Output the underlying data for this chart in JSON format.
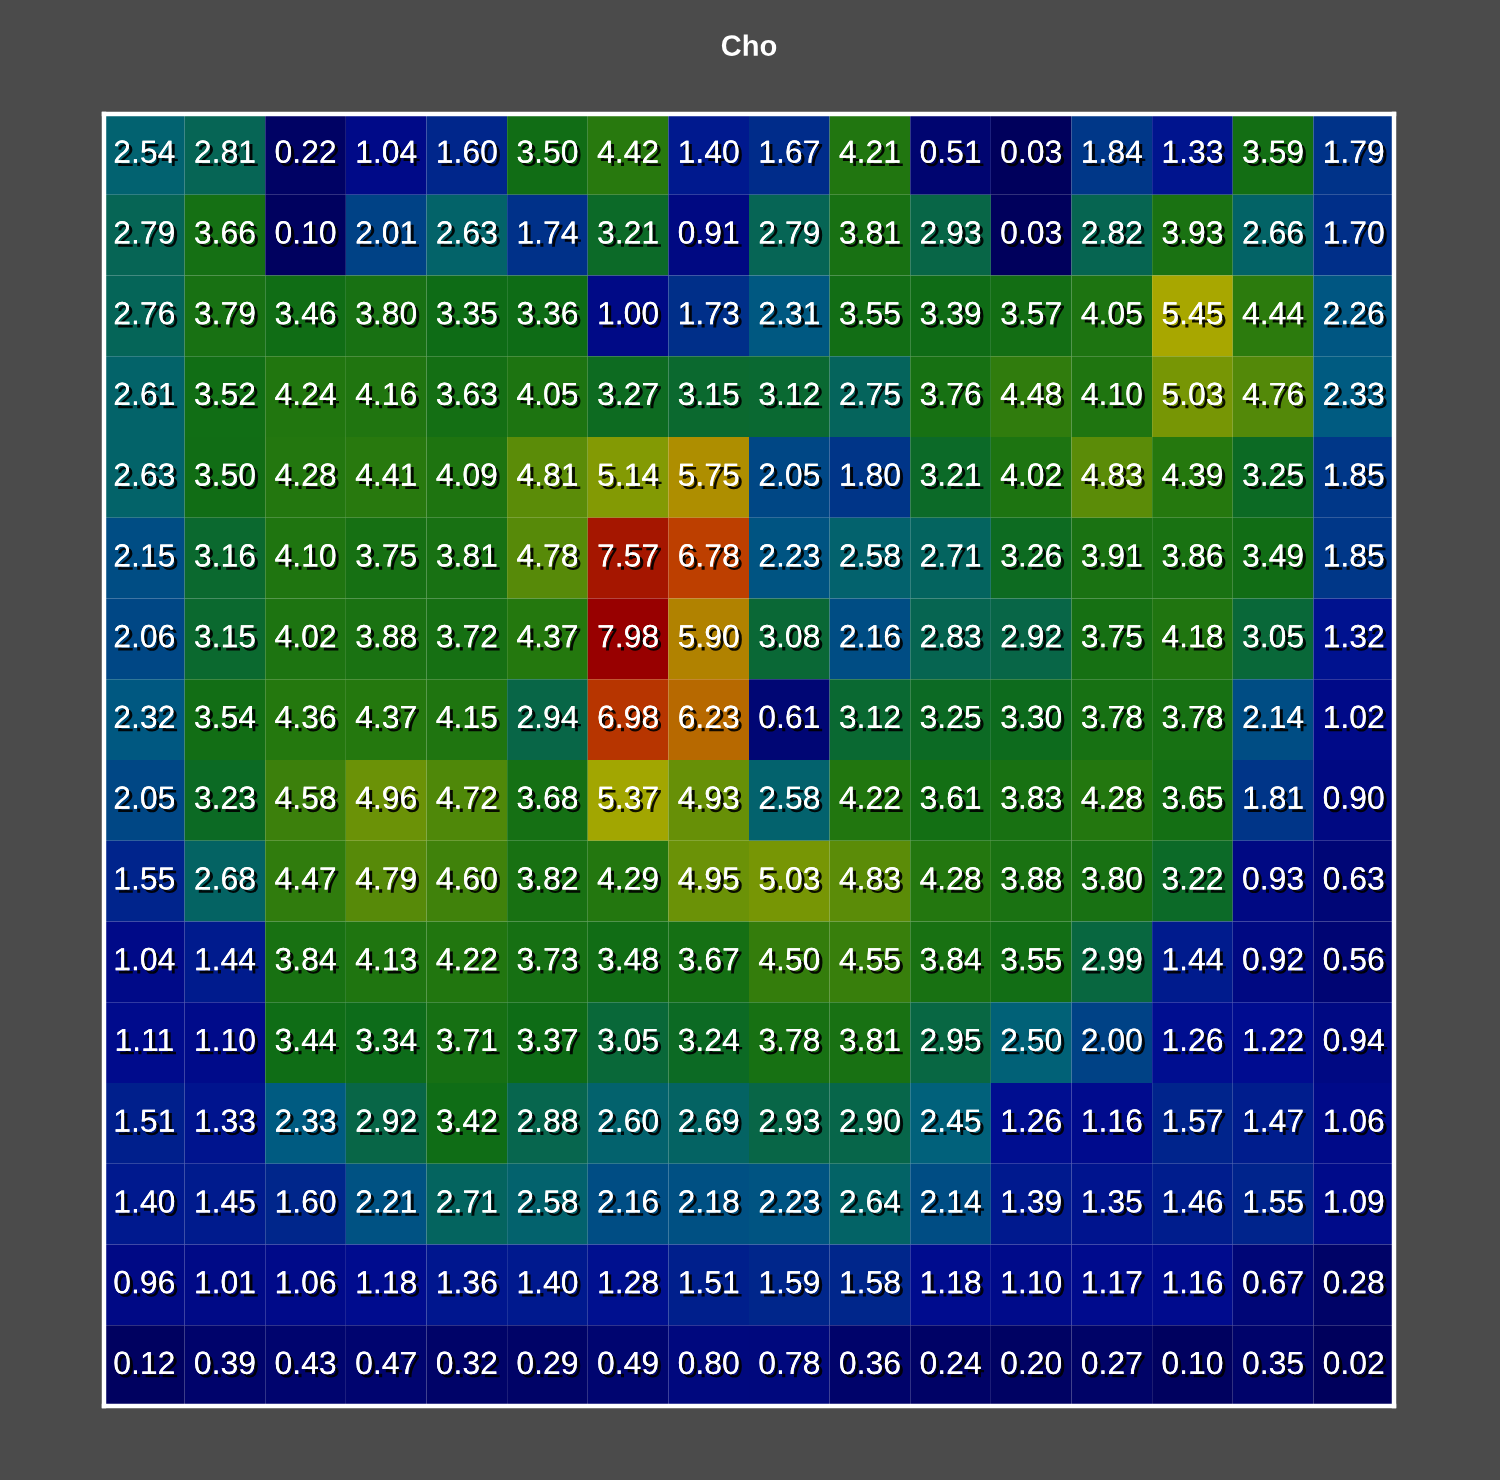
{
  "chart_data": {
    "type": "heatmap",
    "title": "Cho",
    "categories": [
      null,
      null,
      null,
      null,
      null,
      null,
      null,
      null,
      null,
      null,
      null,
      null,
      null,
      null,
      null,
      null
    ],
    "y_categories": [
      null,
      null,
      null,
      null,
      null,
      null,
      null,
      null,
      null,
      null,
      null,
      null,
      null,
      null,
      null,
      null
    ],
    "cells": [
      [
        2.54,
        2.81,
        0.22,
        1.04,
        1.6,
        3.5,
        4.42,
        1.4,
        1.67,
        4.21,
        0.51,
        0.03,
        1.84,
        1.33,
        3.59,
        1.79
      ],
      [
        2.79,
        3.66,
        0.1,
        2.01,
        2.63,
        1.74,
        3.21,
        0.91,
        2.79,
        3.81,
        2.93,
        0.03,
        2.82,
        3.93,
        2.66,
        1.7
      ],
      [
        2.76,
        3.79,
        3.46,
        3.8,
        3.35,
        3.36,
        1.0,
        1.73,
        2.31,
        3.55,
        3.39,
        3.57,
        4.05,
        5.45,
        4.44,
        2.26
      ],
      [
        2.61,
        3.52,
        4.24,
        4.16,
        3.63,
        4.05,
        3.27,
        3.15,
        3.12,
        2.75,
        3.76,
        4.48,
        4.1,
        5.03,
        4.76,
        2.33
      ],
      [
        2.63,
        3.5,
        4.28,
        4.41,
        4.09,
        4.81,
        5.14,
        5.75,
        2.05,
        1.8,
        3.21,
        4.02,
        4.83,
        4.39,
        3.25,
        1.85
      ],
      [
        2.15,
        3.16,
        4.1,
        3.75,
        3.81,
        4.78,
        7.57,
        6.78,
        2.23,
        2.58,
        2.71,
        3.26,
        3.91,
        3.86,
        3.49,
        1.85
      ],
      [
        2.06,
        3.15,
        4.02,
        3.88,
        3.72,
        4.37,
        7.98,
        5.9,
        3.08,
        2.16,
        2.83,
        2.92,
        3.75,
        4.18,
        3.05,
        1.32
      ],
      [
        2.32,
        3.54,
        4.36,
        4.37,
        4.15,
        2.94,
        6.98,
        6.23,
        0.61,
        3.12,
        3.25,
        3.3,
        3.78,
        3.78,
        2.14,
        1.02
      ],
      [
        2.05,
        3.23,
        4.58,
        4.96,
        4.72,
        3.68,
        5.37,
        4.93,
        2.58,
        4.22,
        3.61,
        3.83,
        4.28,
        3.65,
        1.81,
        0.9
      ],
      [
        1.55,
        2.68,
        4.47,
        4.79,
        4.6,
        3.82,
        4.29,
        4.95,
        5.03,
        4.83,
        4.28,
        3.88,
        3.8,
        3.22,
        0.93,
        0.63
      ],
      [
        1.04,
        1.44,
        3.84,
        4.13,
        4.22,
        3.73,
        3.48,
        3.67,
        4.5,
        4.55,
        3.84,
        3.55,
        2.99,
        1.44,
        0.92,
        0.56
      ],
      [
        1.11,
        1.1,
        3.44,
        3.34,
        3.71,
        3.37,
        3.05,
        3.24,
        3.78,
        3.81,
        2.95,
        2.5,
        2.0,
        1.26,
        1.22,
        0.94
      ],
      [
        1.51,
        1.33,
        2.33,
        2.92,
        3.42,
        2.88,
        2.6,
        2.69,
        2.93,
        2.9,
        2.45,
        1.26,
        1.16,
        1.57,
        1.47,
        1.06
      ],
      [
        1.4,
        1.45,
        1.6,
        2.21,
        2.71,
        2.58,
        2.16,
        2.18,
        2.23,
        2.64,
        2.14,
        1.39,
        1.35,
        1.46,
        1.55,
        1.09
      ],
      [
        0.96,
        1.01,
        1.06,
        1.18,
        1.36,
        1.4,
        1.28,
        1.51,
        1.59,
        1.58,
        1.18,
        1.1,
        1.17,
        1.16,
        0.67,
        0.28
      ],
      [
        0.12,
        0.39,
        0.43,
        0.47,
        0.32,
        0.29,
        0.49,
        0.8,
        0.78,
        0.36,
        0.24,
        0.2,
        0.27,
        0.1,
        0.35,
        0.02
      ]
    ],
    "cell_labels": [
      [
        "2.54",
        "2.81",
        "0.22",
        "1.04",
        "1.60",
        "3.50",
        "4.42",
        "1.40",
        "1.67",
        "4.21",
        "0.51",
        "0.03",
        "1.84",
        "1.33",
        "3.59",
        "1.79"
      ],
      [
        "2.79",
        "3.66",
        "0.10",
        "2.01",
        "2.63",
        "1.74",
        "3.21",
        "0.91",
        "2.79",
        "3.81",
        "2.93",
        "0.03",
        "2.82",
        "3.93",
        "2.66",
        "1.70"
      ],
      [
        "2.76",
        "3.79",
        "3.46",
        "3.80",
        "3.35",
        "3.36",
        "1.00",
        "1.73",
        "2.31",
        "3.55",
        "3.39",
        "3.57",
        "4.05",
        "5.45",
        "4.44",
        "2.26"
      ],
      [
        "2.61",
        "3.52",
        "4.24",
        "4.16",
        "3.63",
        "4.05",
        "3.27",
        "3.15",
        "3.12",
        "2.75",
        "3.76",
        "4.48",
        "4.10",
        "5.03",
        "4.76",
        "2.33"
      ],
      [
        "2.63",
        "3.50",
        "4.28",
        "4.41",
        "4.09",
        "4.81",
        "5.14",
        "5.75",
        "2.05",
        "1.80",
        "3.21",
        "4.02",
        "4.83",
        "4.39",
        "3.25",
        "1.85"
      ],
      [
        "2.15",
        "3.16",
        "4.10",
        "3.75",
        "3.81",
        "4.78",
        "7.57",
        "6.78",
        "2.23",
        "2.58",
        "2.71",
        "3.26",
        "3.91",
        "3.86",
        "3.49",
        "1.85"
      ],
      [
        "2.06",
        "3.15",
        "4.02",
        "3.88",
        "3.72",
        "4.37",
        "7.98",
        "5.90",
        "3.08",
        "2.16",
        "2.83",
        "2.92",
        "3.75",
        "4.18",
        "3.05",
        "1.32"
      ],
      [
        "2.32",
        "3.54",
        "4.36",
        "4.37",
        "4.15",
        "2.94",
        "6.98",
        "6.23",
        "0.61",
        "3.12",
        "3.25",
        "3.30",
        "3.78",
        "3.78",
        "2.14",
        "1.02"
      ],
      [
        "2.05",
        "3.23",
        "4.58",
        "4.96",
        "4.72",
        "3.68",
        "5.37",
        "4.93",
        "2.58",
        "4.22",
        "3.61",
        "3.83",
        "4.28",
        "3.65",
        "1.81",
        "0.90"
      ],
      [
        "1.55",
        "2.68",
        "4.47",
        "4.79",
        "4.60",
        "3.82",
        "4.29",
        "4.95",
        "5.03",
        "4.83",
        "4.28",
        "3.88",
        "3.80",
        "3.22",
        "0.93",
        "0.63"
      ],
      [
        "1.04",
        "1.44",
        "3.84",
        "4.13",
        "4.22",
        "3.73",
        "3.48",
        "3.67",
        "4.50",
        "4.55",
        "3.84",
        "3.55",
        "2.99",
        "1.44",
        "0.92",
        "0.56"
      ],
      [
        "1.11",
        "1.10",
        "3.44",
        "3.34",
        "3.71",
        "3.37",
        "3.05",
        "3.24",
        "3.78",
        "3.81",
        "2.95",
        "2.50",
        "2.00",
        "1.26",
        "1.22",
        "0.94"
      ],
      [
        "1.51",
        "1.33",
        "2.33",
        "2.92",
        "3.42",
        "2.88",
        "2.60",
        "2.69",
        "2.93",
        "2.90",
        "2.45",
        "1.26",
        "1.16",
        "1.57",
        "1.47",
        "1.06"
      ],
      [
        "1.40",
        "1.45",
        "1.60",
        "2.21",
        "2.71",
        "2.58",
        "2.16",
        "2.18",
        "2.23",
        "2.64",
        "2.14",
        "1.39",
        "1.35",
        "1.46",
        "1.55",
        "1.09"
      ],
      [
        "0.96",
        "1.01",
        "1.06",
        "1.18",
        "1.36",
        "1.40",
        "1.28",
        "1.51",
        "1.59",
        "1.58",
        "1.18",
        "1.10",
        "1.17",
        "1.16",
        "0.67",
        "0.28"
      ],
      [
        "0.12",
        "0.39",
        "0.43",
        "0.47",
        "0.32",
        "0.29",
        "0.49",
        "0.80",
        "0.78",
        "0.36",
        "0.24",
        "0.20",
        "0.27",
        "0.10",
        "0.35",
        "0.02"
      ]
    ]
  }
}
